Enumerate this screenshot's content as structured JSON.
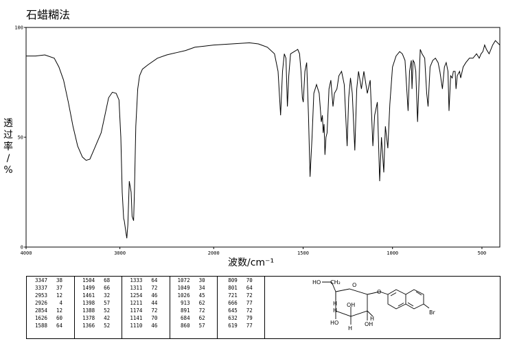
{
  "title": "石蜡糊法",
  "chart_data": {
    "type": "line",
    "title": "石蜡糊法",
    "xlabel": "波数/cm⁻¹",
    "ylabel": "透过率/%",
    "xlim": [
      4000,
      400
    ],
    "ylim": [
      0,
      100
    ],
    "x_ticks": [
      "4000",
      "3000",
      "2000",
      "1500",
      "1000",
      "500"
    ],
    "y_ticks": [
      "100",
      "50",
      "0"
    ],
    "grid": false,
    "series": [
      {
        "points": [
          [
            4000,
            87
          ],
          [
            3900,
            87
          ],
          [
            3800,
            87.5
          ],
          [
            3700,
            86
          ],
          [
            3650,
            82
          ],
          [
            3600,
            76
          ],
          [
            3550,
            66
          ],
          [
            3500,
            55
          ],
          [
            3450,
            46
          ],
          [
            3400,
            41
          ],
          [
            3360,
            39.5
          ],
          [
            3320,
            40
          ],
          [
            3280,
            44
          ],
          [
            3240,
            48
          ],
          [
            3200,
            52
          ],
          [
            3160,
            60
          ],
          [
            3120,
            68
          ],
          [
            3080,
            70.5
          ],
          [
            3040,
            70
          ],
          [
            3010,
            67
          ],
          [
            2990,
            50
          ],
          [
            2975,
            25
          ],
          [
            2960,
            13
          ],
          [
            2953,
            12
          ],
          [
            2940,
            8
          ],
          [
            2926,
            4
          ],
          [
            2915,
            10
          ],
          [
            2900,
            30
          ],
          [
            2880,
            25
          ],
          [
            2870,
            14
          ],
          [
            2854,
            12
          ],
          [
            2845,
            25
          ],
          [
            2830,
            55
          ],
          [
            2810,
            72
          ],
          [
            2790,
            78
          ],
          [
            2760,
            81
          ],
          [
            2700,
            83
          ],
          [
            2600,
            86
          ],
          [
            2500,
            87.5
          ],
          [
            2400,
            88.5
          ],
          [
            2300,
            89.5
          ],
          [
            2200,
            91
          ],
          [
            2100,
            91.5
          ],
          [
            2000,
            92
          ],
          [
            1900,
            92.5
          ],
          [
            1800,
            93
          ],
          [
            1750,
            92.5
          ],
          [
            1700,
            91
          ],
          [
            1660,
            88
          ],
          [
            1640,
            80
          ],
          [
            1626,
            60
          ],
          [
            1615,
            80
          ],
          [
            1605,
            88
          ],
          [
            1596,
            86
          ],
          [
            1588,
            64
          ],
          [
            1580,
            78
          ],
          [
            1570,
            88
          ],
          [
            1550,
            89
          ],
          [
            1530,
            90
          ],
          [
            1520,
            88
          ],
          [
            1512,
            80
          ],
          [
            1504,
            68
          ],
          [
            1499,
            66
          ],
          [
            1490,
            80
          ],
          [
            1480,
            84
          ],
          [
            1470,
            60
          ],
          [
            1461,
            32
          ],
          [
            1450,
            50
          ],
          [
            1440,
            70
          ],
          [
            1425,
            74
          ],
          [
            1410,
            70
          ],
          [
            1398,
            57
          ],
          [
            1392,
            60
          ],
          [
            1388,
            52
          ],
          [
            1383,
            56
          ],
          [
            1378,
            42
          ],
          [
            1372,
            50
          ],
          [
            1366,
            52
          ],
          [
            1355,
            72
          ],
          [
            1345,
            76
          ],
          [
            1333,
            64
          ],
          [
            1325,
            70
          ],
          [
            1311,
            72
          ],
          [
            1300,
            78
          ],
          [
            1285,
            80
          ],
          [
            1270,
            74
          ],
          [
            1254,
            46
          ],
          [
            1245,
            68
          ],
          [
            1235,
            77
          ],
          [
            1225,
            70
          ],
          [
            1211,
            44
          ],
          [
            1200,
            72
          ],
          [
            1190,
            80
          ],
          [
            1174,
            72
          ],
          [
            1160,
            80
          ],
          [
            1141,
            70
          ],
          [
            1125,
            76
          ],
          [
            1110,
            46
          ],
          [
            1100,
            60
          ],
          [
            1085,
            66
          ],
          [
            1072,
            30
          ],
          [
            1062,
            50
          ],
          [
            1049,
            34
          ],
          [
            1040,
            55
          ],
          [
            1026,
            45
          ],
          [
            1015,
            65
          ],
          [
            1000,
            82
          ],
          [
            980,
            87
          ],
          [
            960,
            89
          ],
          [
            945,
            88
          ],
          [
            930,
            85
          ],
          [
            913,
            62
          ],
          [
            905,
            80
          ],
          [
            895,
            85
          ],
          [
            891,
            72
          ],
          [
            885,
            85
          ],
          [
            878,
            84
          ],
          [
            870,
            80
          ],
          [
            860,
            57
          ],
          [
            852,
            75
          ],
          [
            845,
            90
          ],
          [
            835,
            88
          ],
          [
            820,
            86
          ],
          [
            809,
            70
          ],
          [
            801,
            64
          ],
          [
            790,
            82
          ],
          [
            775,
            85
          ],
          [
            760,
            86
          ],
          [
            745,
            84
          ],
          [
            735,
            80
          ],
          [
            721,
            72
          ],
          [
            710,
            82
          ],
          [
            700,
            84
          ],
          [
            690,
            80
          ],
          [
            684,
            62
          ],
          [
            675,
            78
          ],
          [
            666,
            77
          ],
          [
            660,
            80
          ],
          [
            650,
            80
          ],
          [
            645,
            72
          ],
          [
            638,
            78
          ],
          [
            632,
            79
          ],
          [
            625,
            80
          ],
          [
            619,
            77
          ],
          [
            605,
            82
          ],
          [
            590,
            84
          ],
          [
            570,
            86
          ],
          [
            550,
            86
          ],
          [
            530,
            88
          ],
          [
            515,
            86
          ],
          [
            505,
            88
          ],
          [
            495,
            89
          ],
          [
            485,
            92
          ],
          [
            475,
            90
          ],
          [
            460,
            88
          ],
          [
            440,
            92
          ],
          [
            425,
            94
          ],
          [
            400,
            92
          ]
        ]
      }
    ]
  },
  "peak_table": {
    "columns": [
      [
        [
          "3347",
          "38"
        ],
        [
          "3337",
          "37"
        ],
        [
          "2953",
          "12"
        ],
        [
          "2926",
          "4"
        ],
        [
          "2854",
          "12"
        ],
        [
          "1626",
          "60"
        ],
        [
          "1588",
          "64"
        ]
      ],
      [
        [
          "1504",
          "68"
        ],
        [
          "1499",
          "66"
        ],
        [
          "1461",
          "32"
        ],
        [
          "1398",
          "57"
        ],
        [
          "1388",
          "52"
        ],
        [
          "1378",
          "42"
        ],
        [
          "1366",
          "52"
        ]
      ],
      [
        [
          "1333",
          "64"
        ],
        [
          "1311",
          "72"
        ],
        [
          "1254",
          "46"
        ],
        [
          "1211",
          "44"
        ],
        [
          "1174",
          "72"
        ],
        [
          "1141",
          "70"
        ],
        [
          "1110",
          "46"
        ]
      ],
      [
        [
          "1072",
          "30"
        ],
        [
          "1049",
          "34"
        ],
        [
          "1026",
          "45"
        ],
        [
          "913",
          "62"
        ],
        [
          "891",
          "72"
        ],
        [
          "684",
          "62"
        ],
        [
          "860",
          "57"
        ]
      ],
      [
        [
          "809",
          "70"
        ],
        [
          "801",
          "64"
        ],
        [
          "721",
          "72"
        ],
        [
          "666",
          "77"
        ],
        [
          "645",
          "72"
        ],
        [
          "632",
          "79"
        ],
        [
          "619",
          "77"
        ]
      ]
    ]
  },
  "structure": {
    "labels": [
      "HO",
      "CH₂",
      "O",
      "O",
      "H",
      "H",
      "OH",
      "HO",
      "H",
      "OH",
      "H",
      "Br"
    ]
  }
}
